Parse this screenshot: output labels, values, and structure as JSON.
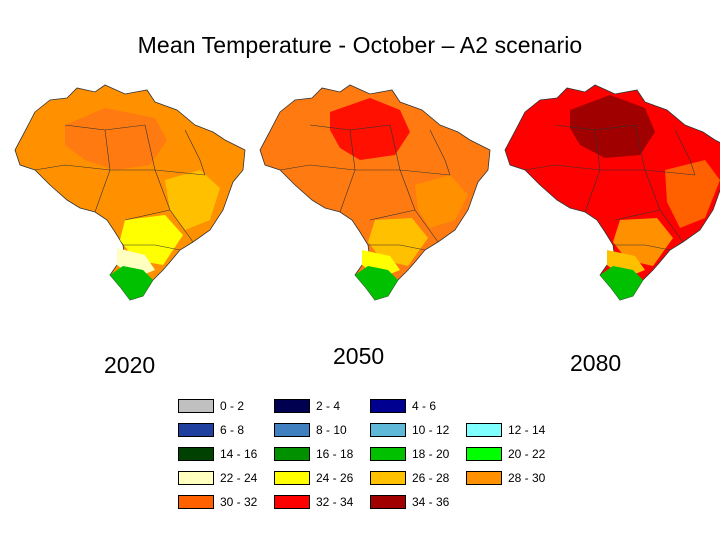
{
  "title": "Mean Temperature - October – A2 scenario",
  "maps": [
    {
      "year": "2020"
    },
    {
      "year": "2050"
    },
    {
      "year": "2080"
    }
  ],
  "legend": [
    {
      "label": "0 - 2",
      "color": "#c0c0c0"
    },
    {
      "label": "2 - 4",
      "color": "#000050"
    },
    {
      "label": "4 - 6",
      "color": "#000090"
    },
    {
      "label": "6 - 8",
      "color": "#2040a0"
    },
    {
      "label": "8 - 10",
      "color": "#4080c0"
    },
    {
      "label": "10 - 12",
      "color": "#60b8d8"
    },
    {
      "label": "12 - 14",
      "color": "#80ffff"
    },
    {
      "label": "14 - 16",
      "color": "#004000"
    },
    {
      "label": "16 - 18",
      "color": "#009000"
    },
    {
      "label": "18 - 20",
      "color": "#00c000"
    },
    {
      "label": "20 - 22",
      "color": "#00ff00"
    },
    {
      "label": "22 - 24",
      "color": "#ffffc0"
    },
    {
      "label": "24 - 26",
      "color": "#ffff00"
    },
    {
      "label": "26 - 28",
      "color": "#ffc000"
    },
    {
      "label": "28 - 30",
      "color": "#ff9000"
    },
    {
      "label": "30 - 32",
      "color": "#ff6000"
    },
    {
      "label": "32 - 34",
      "color": "#ff0000"
    },
    {
      "label": "34 - 36",
      "color": "#a00000"
    }
  ]
}
